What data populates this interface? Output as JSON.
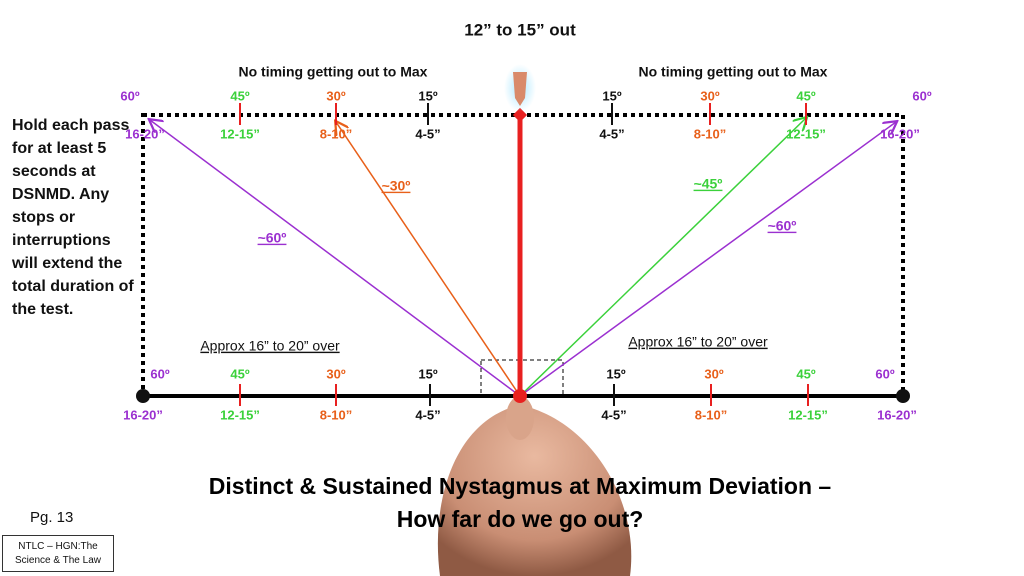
{
  "header": {
    "title": "12” to 15” out"
  },
  "top_notes": [
    "No timing getting out to Max",
    "No timing getting out to Max"
  ],
  "top_scale": [
    {
      "angle": "60º",
      "distance": "16-20”"
    },
    {
      "angle": "45º",
      "distance": "12-15”"
    },
    {
      "angle": "30º",
      "distance": "8-10”"
    },
    {
      "angle": "15º",
      "distance": "4-5”"
    },
    {
      "angle": "15º",
      "distance": "4-5”"
    },
    {
      "angle": "30º",
      "distance": "8-10”"
    },
    {
      "angle": "45º",
      "distance": "12-15”"
    },
    {
      "angle": "60º",
      "distance": "16-20”"
    }
  ],
  "arrows": [
    "~60º",
    "~30º",
    "~45º",
    "~60º"
  ],
  "side_note": "Hold each pass for at least 5 seconds at DSNMD. Any stops or interruptions will extend the total duration of the test.",
  "bottom_notes": [
    "Approx 16” to 20” over",
    "Approx 16” to 20” over"
  ],
  "bottom_scale": [
    {
      "angle": "60º",
      "distance": "16-20”"
    },
    {
      "angle": "45º",
      "distance": "12-15”"
    },
    {
      "angle": "30º",
      "distance": "8-10”"
    },
    {
      "angle": "15º",
      "distance": "4-5”"
    },
    {
      "angle": "15º",
      "distance": "4-5”"
    },
    {
      "angle": "30º",
      "distance": "8-10”"
    },
    {
      "angle": "45º",
      "distance": "12-15”"
    },
    {
      "angle": "60º",
      "distance": "16-20”"
    }
  ],
  "footer": {
    "title_lines": [
      "Distinct & Sustained Nystagmus at Maximum Deviation –",
      "How far do we go out?"
    ],
    "page": "Pg. 13",
    "box": "NTLC – HGN:The Science & The Law"
  }
}
